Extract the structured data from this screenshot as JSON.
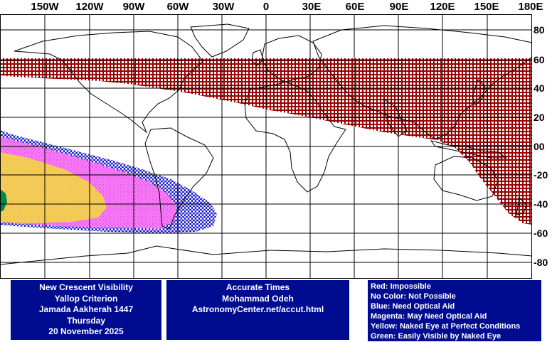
{
  "longitude_labels": [
    "150W",
    "120W",
    "90W",
    "60W",
    "30W",
    "0",
    "30E",
    "60E",
    "90E",
    "120E",
    "150E",
    "180E"
  ],
  "latitude_labels": [
    "80",
    "60",
    "40",
    "20",
    "00",
    "-20",
    "-40",
    "-60",
    "-80"
  ],
  "colors": {
    "impossible": "#990000",
    "need_optical_aid": "#0000cc",
    "may_need_optical_aid": "#ee55ee",
    "naked_eye_perfect": "#f0c040",
    "easily_visible": "#008844",
    "panel_background": "#000c8f",
    "panel_text": "#ffffff"
  },
  "title_panel": {
    "line1": "New Crescent Visibility",
    "line2": "Yallop Criterion",
    "line3": "Jamada Aakherah 1447",
    "line4": "Thursday",
    "line5": "20 November 2025"
  },
  "credit_panel": {
    "line1": "Accurate Times",
    "line2": "Mohammad Odeh",
    "line3": "AstronomyCenter.net/accut.html"
  },
  "legend": [
    {
      "text": "Red: Impossible"
    },
    {
      "text": "No Color: Not Possible"
    },
    {
      "text": "Blue: Need Optical Aid"
    },
    {
      "text": "Magenta: May Need Optical Aid"
    },
    {
      "text": "Yellow: Naked Eye at Perfect Conditions"
    },
    {
      "text": "Green: Easily Visible by Naked Eye"
    }
  ]
}
